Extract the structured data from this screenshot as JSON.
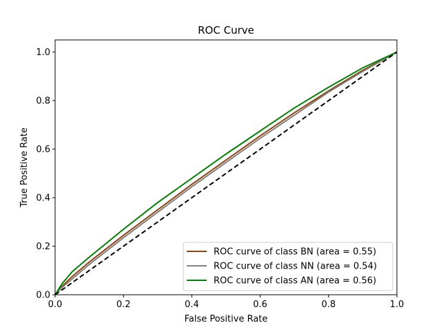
{
  "chart_data": {
    "type": "line",
    "title": "ROC Curve",
    "xlabel": "False Positive Rate",
    "ylabel": "True Positive Rate",
    "xlim": [
      0.0,
      1.0
    ],
    "ylim": [
      0.0,
      1.05
    ],
    "x_ticks": [
      "0.0",
      "0.2",
      "0.4",
      "0.6",
      "0.8",
      "1.0"
    ],
    "y_ticks": [
      "0.0",
      "0.2",
      "0.4",
      "0.6",
      "0.8",
      "1.0"
    ],
    "grid": false,
    "legend_position": "lower-right",
    "series": [
      {
        "name": "ROC curve of class BN (area = 0.55)",
        "color": "#8B4513",
        "x": [
          0.0,
          0.02,
          0.05,
          0.1,
          0.2,
          0.3,
          0.4,
          0.5,
          0.6,
          0.7,
          0.8,
          0.9,
          1.0
        ],
        "y": [
          0.0,
          0.035,
          0.075,
          0.135,
          0.245,
          0.35,
          0.455,
          0.555,
          0.655,
          0.75,
          0.84,
          0.925,
          1.0
        ]
      },
      {
        "name": "ROC curve of class NN (area = 0.54)",
        "color": "#808080",
        "x": [
          0.0,
          0.02,
          0.05,
          0.1,
          0.2,
          0.3,
          0.4,
          0.5,
          0.6,
          0.7,
          0.8,
          0.9,
          1.0
        ],
        "y": [
          0.0,
          0.03,
          0.065,
          0.125,
          0.235,
          0.34,
          0.445,
          0.545,
          0.645,
          0.74,
          0.835,
          0.92,
          1.0
        ]
      },
      {
        "name": "ROC curve of class AN (area = 0.56)",
        "color": "#008000",
        "x": [
          0.0,
          0.02,
          0.05,
          0.1,
          0.2,
          0.3,
          0.4,
          0.5,
          0.6,
          0.7,
          0.8,
          0.9,
          1.0
        ],
        "y": [
          0.0,
          0.045,
          0.095,
          0.155,
          0.27,
          0.38,
          0.48,
          0.58,
          0.675,
          0.77,
          0.855,
          0.935,
          1.0
        ]
      },
      {
        "name": "",
        "color": "#000000",
        "dashed": true,
        "x": [
          0.0,
          1.0
        ],
        "y": [
          0.0,
          1.0
        ]
      }
    ]
  }
}
